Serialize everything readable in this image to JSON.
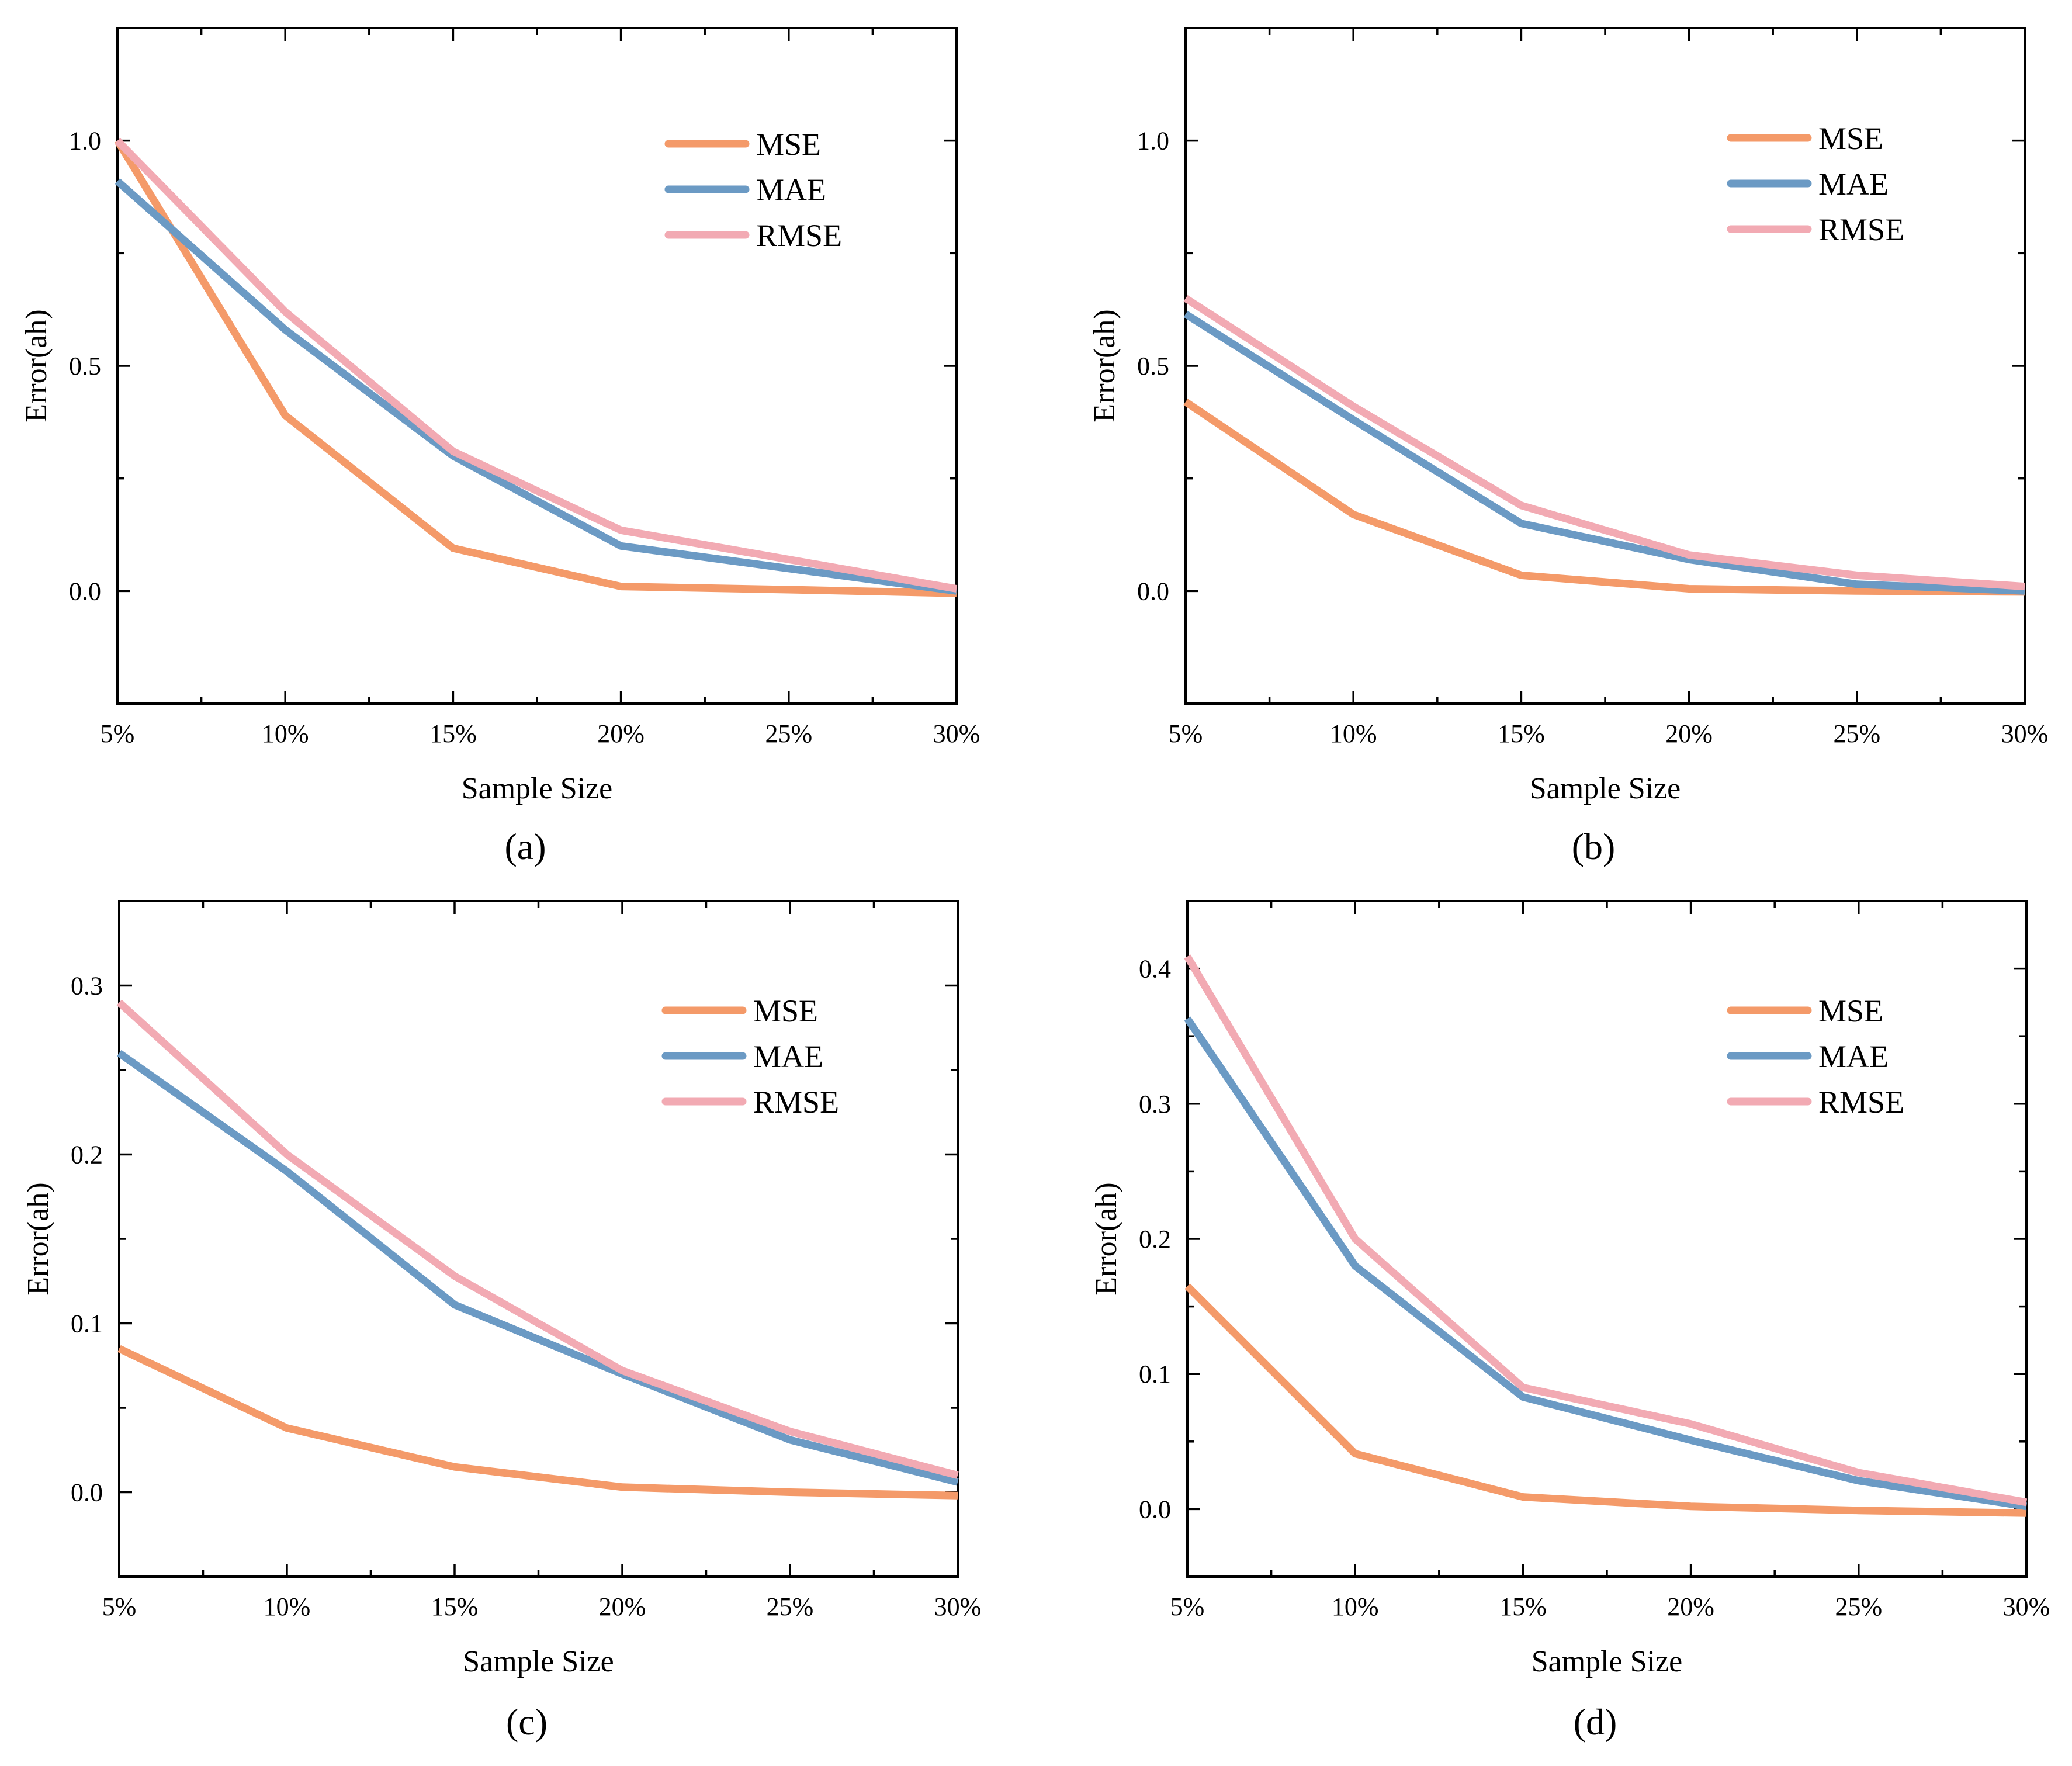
{
  "colors": {
    "MSE": "#f49a69",
    "MAE": "#6b9ac4",
    "RMSE": "#f2aab3"
  },
  "chart_data": [
    {
      "type": "line",
      "panel_label": "(a)",
      "xlabel": "Sample Size",
      "ylabel": "Error(ah)",
      "categories": [
        "5%",
        "10%",
        "15%",
        "20%",
        "25%",
        "30%"
      ],
      "ylim": [
        -0.25,
        1.25
      ],
      "yticks": [
        0.0,
        0.5,
        1.0
      ],
      "ytick_labels": [
        "0.0",
        "0.5",
        "1.0"
      ],
      "legend_position": "top-right",
      "series": [
        {
          "name": "MSE",
          "values": [
            1.0,
            0.39,
            0.095,
            0.01,
            0.003,
            -0.005
          ]
        },
        {
          "name": "MAE",
          "values": [
            0.91,
            0.58,
            0.3,
            0.1,
            0.05,
            0.0
          ]
        },
        {
          "name": "RMSE",
          "values": [
            1.0,
            0.62,
            0.31,
            0.135,
            0.07,
            0.005
          ]
        }
      ]
    },
    {
      "type": "line",
      "panel_label": "(b)",
      "xlabel": "Sample Size",
      "ylabel": "Error(ah)",
      "categories": [
        "5%",
        "10%",
        "15%",
        "20%",
        "25%",
        "30%"
      ],
      "ylim": [
        -0.25,
        1.25
      ],
      "yticks": [
        0.0,
        0.5,
        1.0
      ],
      "ytick_labels": [
        "0.0",
        "0.5",
        "1.0"
      ],
      "legend_position": "top-right",
      "series": [
        {
          "name": "MSE",
          "values": [
            0.42,
            0.17,
            0.035,
            0.005,
            0.0,
            -0.002
          ]
        },
        {
          "name": "MAE",
          "values": [
            0.615,
            0.38,
            0.15,
            0.07,
            0.015,
            0.0
          ]
        },
        {
          "name": "RMSE",
          "values": [
            0.65,
            0.41,
            0.19,
            0.08,
            0.035,
            0.01
          ]
        }
      ]
    },
    {
      "type": "line",
      "panel_label": "(c)",
      "xlabel": "Sample Size",
      "ylabel": "Error(ah)",
      "categories": [
        "5%",
        "10%",
        "15%",
        "20%",
        "25%",
        "30%"
      ],
      "ylim": [
        -0.05,
        0.35
      ],
      "yticks": [
        0.0,
        0.1,
        0.2,
        0.3
      ],
      "ytick_labels": [
        "0.0",
        "0.1",
        "0.2",
        "0.3"
      ],
      "legend_position": "top-right",
      "series": [
        {
          "name": "MSE",
          "values": [
            0.085,
            0.038,
            0.015,
            0.003,
            0.0,
            -0.002
          ]
        },
        {
          "name": "MAE",
          "values": [
            0.26,
            0.19,
            0.111,
            0.07,
            0.031,
            0.006
          ]
        },
        {
          "name": "RMSE",
          "values": [
            0.29,
            0.2,
            0.128,
            0.072,
            0.036,
            0.01
          ]
        }
      ]
    },
    {
      "type": "line",
      "panel_label": "(d)",
      "xlabel": "Sample Size",
      "ylabel": "Error(ah)",
      "categories": [
        "5%",
        "10%",
        "15%",
        "20%",
        "25%",
        "30%"
      ],
      "ylim": [
        -0.05,
        0.45
      ],
      "yticks": [
        0.0,
        0.1,
        0.2,
        0.3,
        0.4
      ],
      "ytick_labels": [
        "0.0",
        "0.1",
        "0.2",
        "0.3",
        "0.4"
      ],
      "legend_position": "top-right",
      "series": [
        {
          "name": "MSE",
          "values": [
            0.165,
            0.041,
            0.009,
            0.002,
            -0.001,
            -0.003
          ]
        },
        {
          "name": "MAE",
          "values": [
            0.363,
            0.18,
            0.083,
            0.051,
            0.021,
            0.002
          ]
        },
        {
          "name": "RMSE",
          "values": [
            0.409,
            0.2,
            0.09,
            0.063,
            0.027,
            0.005
          ]
        }
      ]
    }
  ]
}
